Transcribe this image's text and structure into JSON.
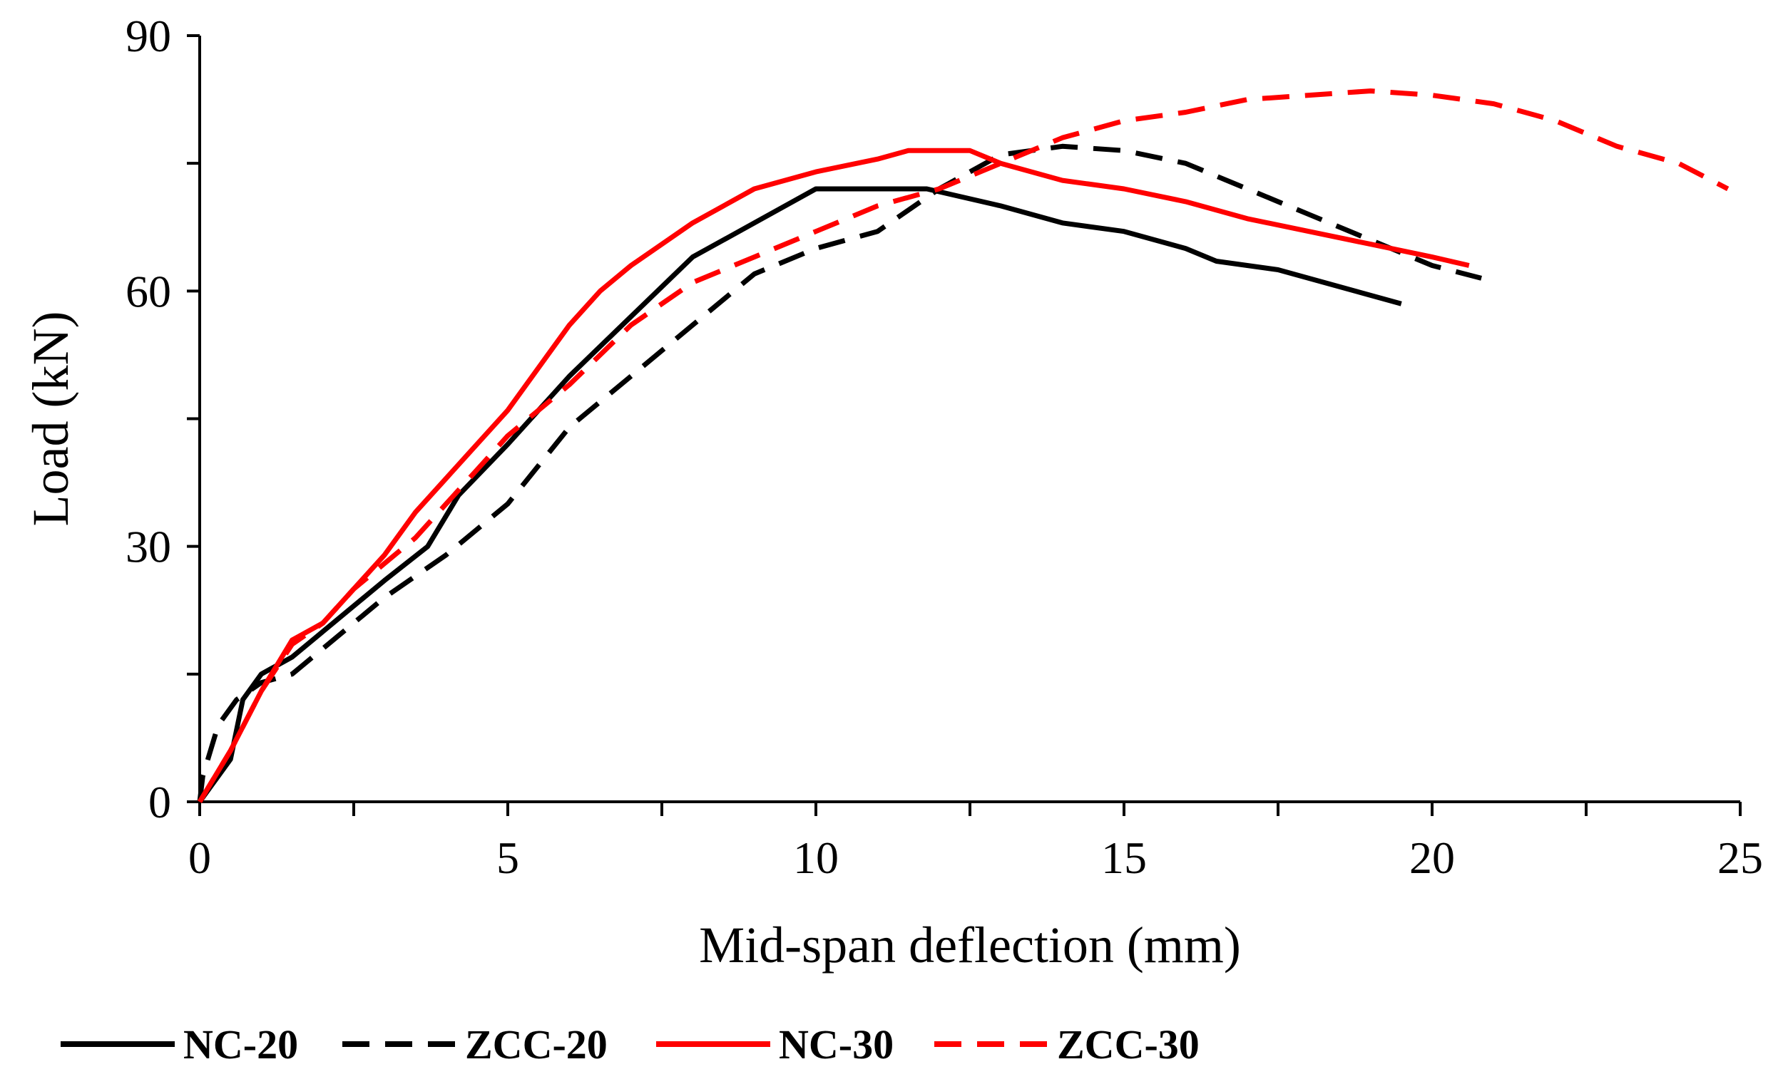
{
  "chart_data": {
    "type": "line",
    "title": "",
    "xlabel": "Mid-span deflection (mm)",
    "ylabel": "Load (kN)",
    "xlim": [
      0,
      25
    ],
    "ylim": [
      0,
      90
    ],
    "xticks": [
      0,
      5,
      10,
      15,
      20,
      25
    ],
    "yticks": [
      0,
      30,
      60,
      90
    ],
    "xtick_labels": [
      "0",
      "5",
      "10",
      "15",
      "20",
      "25"
    ],
    "ytick_labels": [
      "0",
      "30",
      "60",
      "90"
    ],
    "grid": false,
    "legend_position": "bottom",
    "series": [
      {
        "name": "NC-20",
        "color": "#000000",
        "dash": "solid",
        "points": [
          [
            0,
            0
          ],
          [
            0.5,
            5
          ],
          [
            0.7,
            12
          ],
          [
            1,
            15
          ],
          [
            1.5,
            17
          ],
          [
            2,
            20
          ],
          [
            3,
            26
          ],
          [
            3.7,
            30
          ],
          [
            4.2,
            36
          ],
          [
            5,
            42
          ],
          [
            6,
            50
          ],
          [
            7,
            57
          ],
          [
            8,
            64
          ],
          [
            9,
            68
          ],
          [
            10,
            72
          ],
          [
            11,
            72
          ],
          [
            11.8,
            72
          ],
          [
            13,
            70
          ],
          [
            14,
            68
          ],
          [
            15,
            67
          ],
          [
            16,
            65
          ],
          [
            16.5,
            63.5
          ],
          [
            17.5,
            62.5
          ],
          [
            18.5,
            60.5
          ],
          [
            19.5,
            58.5
          ]
        ]
      },
      {
        "name": "ZCC-20",
        "color": "#000000",
        "dash": "dashed",
        "points": [
          [
            0,
            0
          ],
          [
            0.05,
            3
          ],
          [
            0.3,
            9
          ],
          [
            0.6,
            12
          ],
          [
            1,
            14
          ],
          [
            1.5,
            15
          ],
          [
            2,
            18
          ],
          [
            3,
            24
          ],
          [
            4,
            29
          ],
          [
            5,
            35
          ],
          [
            6,
            44
          ],
          [
            7,
            50
          ],
          [
            8,
            56
          ],
          [
            9,
            62
          ],
          [
            10,
            65
          ],
          [
            11,
            67
          ],
          [
            12,
            72
          ],
          [
            13,
            76
          ],
          [
            14,
            77
          ],
          [
            15,
            76.5
          ],
          [
            16,
            75
          ],
          [
            17,
            72
          ],
          [
            18,
            69
          ],
          [
            19,
            66
          ],
          [
            20,
            63
          ],
          [
            20.8,
            61.5
          ]
        ]
      },
      {
        "name": "NC-30",
        "color": "#ff0000",
        "dash": "solid",
        "points": [
          [
            0,
            0
          ],
          [
            0.5,
            6
          ],
          [
            1,
            13
          ],
          [
            1.5,
            19
          ],
          [
            2,
            21
          ],
          [
            2.5,
            25
          ],
          [
            3,
            29
          ],
          [
            3.5,
            34
          ],
          [
            4,
            38
          ],
          [
            4.5,
            42
          ],
          [
            5,
            46
          ],
          [
            5.5,
            51
          ],
          [
            6,
            56
          ],
          [
            6.5,
            60
          ],
          [
            7,
            63
          ],
          [
            8,
            68
          ],
          [
            9,
            72
          ],
          [
            10,
            74
          ],
          [
            11,
            75.5
          ],
          [
            11.5,
            76.5
          ],
          [
            12,
            76.5
          ],
          [
            12.5,
            76.5
          ],
          [
            13,
            75
          ],
          [
            14,
            73
          ],
          [
            15,
            72
          ],
          [
            16,
            70.5
          ],
          [
            17,
            68.5
          ],
          [
            18,
            67
          ],
          [
            19,
            65.5
          ],
          [
            20,
            64
          ],
          [
            20.6,
            63
          ]
        ]
      },
      {
        "name": "ZCC-30",
        "color": "#ff0000",
        "dash": "dashed",
        "points": [
          [
            0,
            0
          ],
          [
            0.5,
            6
          ],
          [
            1,
            13
          ],
          [
            1.5,
            18.5
          ],
          [
            2,
            21
          ],
          [
            2.5,
            25
          ],
          [
            3,
            28
          ],
          [
            3.5,
            31
          ],
          [
            4,
            35
          ],
          [
            4.5,
            39
          ],
          [
            5,
            43
          ],
          [
            6,
            49
          ],
          [
            7,
            56
          ],
          [
            8,
            61
          ],
          [
            9,
            64
          ],
          [
            10,
            67
          ],
          [
            11,
            70
          ],
          [
            12,
            72
          ],
          [
            13,
            75
          ],
          [
            14,
            78
          ],
          [
            15,
            80
          ],
          [
            16,
            81
          ],
          [
            17,
            82.5
          ],
          [
            18,
            83
          ],
          [
            19,
            83.5
          ],
          [
            20,
            83
          ],
          [
            21,
            82
          ],
          [
            22,
            80
          ],
          [
            23,
            77
          ],
          [
            24,
            75
          ],
          [
            24.8,
            72
          ]
        ]
      }
    ]
  }
}
